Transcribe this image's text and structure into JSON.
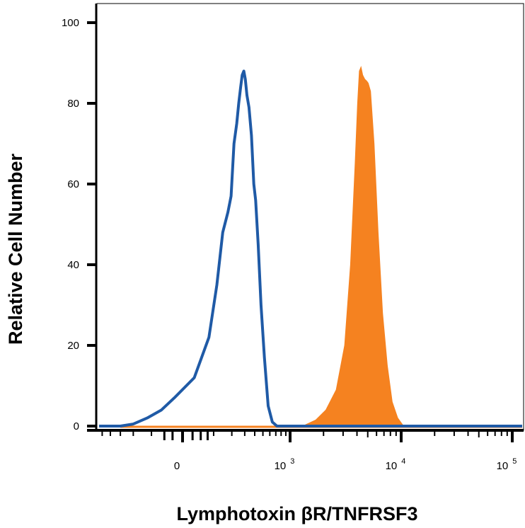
{
  "chart_data": {
    "type": "area",
    "title": "",
    "xlabel": "Lymphotoxin βR/TNFRSF3",
    "ylabel": "Relative Cell Number",
    "x_scale": "biexponential",
    "ylim": [
      0,
      100
    ],
    "y_ticks": [
      {
        "value": 0,
        "label": "0"
      },
      {
        "value": 20,
        "label": "20"
      },
      {
        "value": 40,
        "label": "40"
      },
      {
        "value": 60,
        "label": "60"
      },
      {
        "value": 80,
        "label": "80"
      },
      {
        "value": 100,
        "label": "100"
      }
    ],
    "x_ticks": [
      {
        "value": 0,
        "base": "0",
        "exp": ""
      },
      {
        "value": 1000,
        "base": "10",
        "exp": "3"
      },
      {
        "value": 10000,
        "base": "10",
        "exp": "4"
      },
      {
        "value": 100000,
        "base": "10",
        "exp": "5"
      }
    ],
    "grid": false,
    "legend": "none",
    "series": [
      {
        "style": "outline",
        "color": "#1f5aa6",
        "points": [
          [
            -300,
            0
          ],
          [
            -200,
            0.5
          ],
          [
            -120,
            2
          ],
          [
            -60,
            4
          ],
          [
            -20,
            7
          ],
          [
            30,
            12
          ],
          [
            80,
            22
          ],
          [
            115,
            35
          ],
          [
            145,
            48
          ],
          [
            175,
            53
          ],
          [
            195,
            57
          ],
          [
            215,
            70
          ],
          [
            235,
            75
          ],
          [
            250,
            80
          ],
          [
            265,
            84
          ],
          [
            278,
            87
          ],
          [
            292,
            88
          ],
          [
            305,
            86
          ],
          [
            320,
            82
          ],
          [
            340,
            79
          ],
          [
            365,
            72
          ],
          [
            390,
            60
          ],
          [
            410,
            56
          ],
          [
            440,
            45
          ],
          [
            475,
            30
          ],
          [
            520,
            17
          ],
          [
            575,
            5
          ],
          [
            640,
            1
          ],
          [
            720,
            0
          ]
        ]
      },
      {
        "style": "filled",
        "color": "#f58220",
        "points": [
          [
            1300,
            0
          ],
          [
            1700,
            1.5
          ],
          [
            2100,
            4
          ],
          [
            2600,
            9
          ],
          [
            3100,
            20
          ],
          [
            3500,
            40
          ],
          [
            3850,
            65
          ],
          [
            4050,
            80
          ],
          [
            4200,
            88
          ],
          [
            4350,
            89
          ],
          [
            4500,
            87
          ],
          [
            4700,
            86
          ],
          [
            4900,
            85.5
          ],
          [
            5050,
            85
          ],
          [
            5300,
            83
          ],
          [
            5700,
            70
          ],
          [
            6200,
            48
          ],
          [
            6800,
            28
          ],
          [
            7500,
            15
          ],
          [
            8300,
            6
          ],
          [
            9300,
            2
          ],
          [
            10500,
            0
          ]
        ]
      }
    ]
  }
}
